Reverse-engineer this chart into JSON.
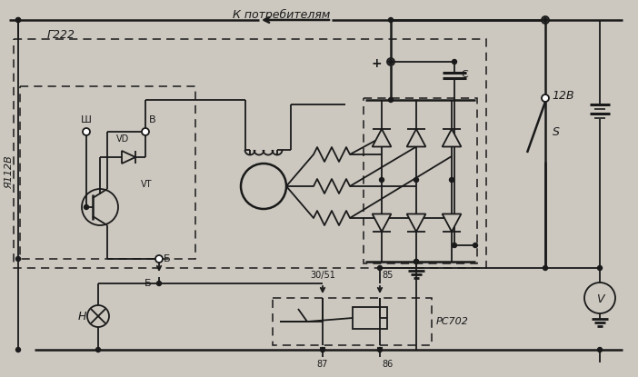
{
  "bg_color": "#ccc8c0",
  "line_color": "#1a1a1a",
  "title_top": "К потребителям",
  "label_g222": "Г222",
  "label_ya112v": "Я112В",
  "label_vd": "VD",
  "label_vt": "VT",
  "label_sh": "Ш",
  "label_v_term": "В",
  "label_b_top": "Б",
  "label_b_bottom": "Б",
  "label_c": "C",
  "label_12v": "12В",
  "label_s": "S",
  "label_h": "Н",
  "label_3051": "30/51",
  "label_85": "85",
  "label_87": "87",
  "label_86": "86",
  "label_rc702": "РС702",
  "label_plus": "+",
  "label_V": "V"
}
